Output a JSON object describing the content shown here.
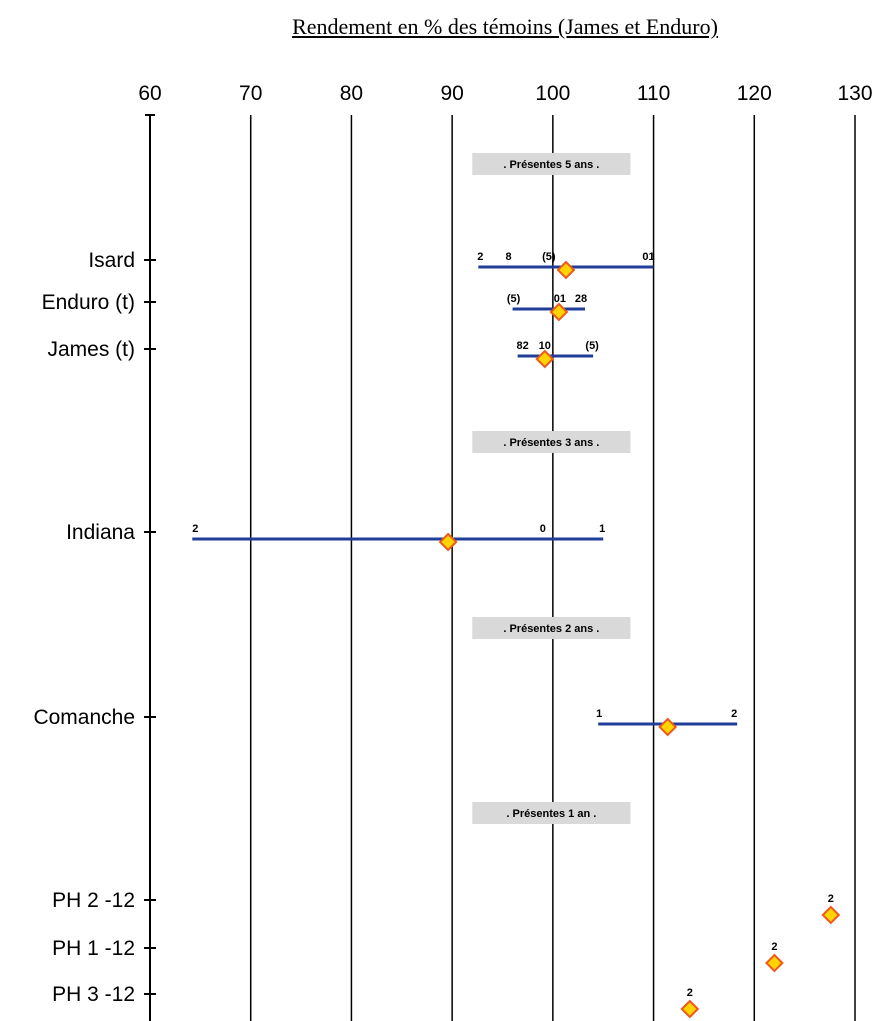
{
  "chart_data": {
    "type": "scatter",
    "title": "Rendement en % des témoins (James et Enduro)",
    "xlim": [
      60,
      130
    ],
    "x_ticks": [
      60,
      70,
      80,
      90,
      100,
      110,
      120,
      130
    ],
    "grid": true,
    "groups": [
      {
        "label": ". Présentes 5 ans .",
        "rows": [
          {
            "name": "Isard",
            "mean": 101.3,
            "range": [
              92.6,
              110
            ],
            "labels": [
              {
                "text": "2",
                "x": 92.8
              },
              {
                "text": "8",
                "x": 95.6
              },
              {
                "text": "(5)",
                "x": 99.6
              },
              {
                "text": "01",
                "x": 109.5
              }
            ]
          },
          {
            "name": "Enduro (t)",
            "mean": 100.6,
            "range": [
              96,
              103.2
            ],
            "labels": [
              {
                "text": "(5)",
                "x": 96.1
              },
              {
                "text": "01",
                "x": 100.7
              },
              {
                "text": "28",
                "x": 102.8
              }
            ]
          },
          {
            "name": "James (t)",
            "mean": 99.2,
            "range": [
              96.5,
              104
            ],
            "labels": [
              {
                "text": "82",
                "x": 97
              },
              {
                "text": "10",
                "x": 99.2
              },
              {
                "text": "(5)",
                "x": 103.9
              }
            ]
          }
        ]
      },
      {
        "label": ". Présentes 3 ans .",
        "rows": [
          {
            "name": "Indiana",
            "mean": 89.6,
            "range": [
              64.2,
              105
            ],
            "labels": [
              {
                "text": "2",
                "x": 64.5
              },
              {
                "text": "0",
                "x": 99
              },
              {
                "text": "1",
                "x": 104.9
              }
            ]
          }
        ]
      },
      {
        "label": ". Présentes 2 ans .",
        "rows": [
          {
            "name": "Comanche",
            "mean": 111.4,
            "range": [
              104.5,
              118.3
            ],
            "labels": [
              {
                "text": "1",
                "x": 104.6
              },
              {
                "text": "2",
                "x": 118
              }
            ]
          }
        ]
      },
      {
        "label": ". Présentes 1 an .",
        "rows": [
          {
            "name": "PH 2 -12",
            "mean": 127.6,
            "labels": [
              {
                "text": "2",
                "x": 127.6
              }
            ]
          },
          {
            "name": "PH 1 -12",
            "mean": 122,
            "labels": [
              {
                "text": "2",
                "x": 122
              }
            ]
          },
          {
            "name": "PH 3 -12",
            "mean": 113.6,
            "labels": [
              {
                "text": "2",
                "x": 113.6
              }
            ]
          }
        ]
      }
    ],
    "colors": {
      "range_line": "#1f3d99",
      "marker_fill": "#ffd400",
      "marker_stroke": "#ee5a1e",
      "group_box": "#d9d9d9"
    }
  }
}
